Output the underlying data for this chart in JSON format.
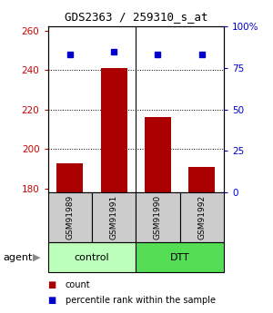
{
  "title": "GDS2363 / 259310_s_at",
  "samples": [
    "GSM91989",
    "GSM91991",
    "GSM91990",
    "GSM91992"
  ],
  "counts": [
    193,
    241,
    216,
    191
  ],
  "percentiles": [
    83,
    85,
    83,
    83
  ],
  "ylim_left": [
    178,
    262
  ],
  "ylim_right": [
    0,
    100
  ],
  "yticks_left": [
    180,
    200,
    220,
    240,
    260
  ],
  "yticks_right": [
    0,
    25,
    50,
    75,
    100
  ],
  "bar_color": "#aa0000",
  "dot_color": "#0000cc",
  "control_color": "#bbffbb",
  "dtt_color": "#55dd55",
  "bg_color": "#ffffff",
  "bar_bg_color": "#cccccc",
  "ylabel_left_color": "#cc0000",
  "ylabel_right_color": "#0000cc",
  "grid_yticks": [
    200,
    220,
    240
  ],
  "bar_width": 0.6,
  "title_fontsize": 9,
  "tick_fontsize": 7.5,
  "sample_fontsize": 6.5,
  "group_fontsize": 8,
  "legend_fontsize": 7
}
